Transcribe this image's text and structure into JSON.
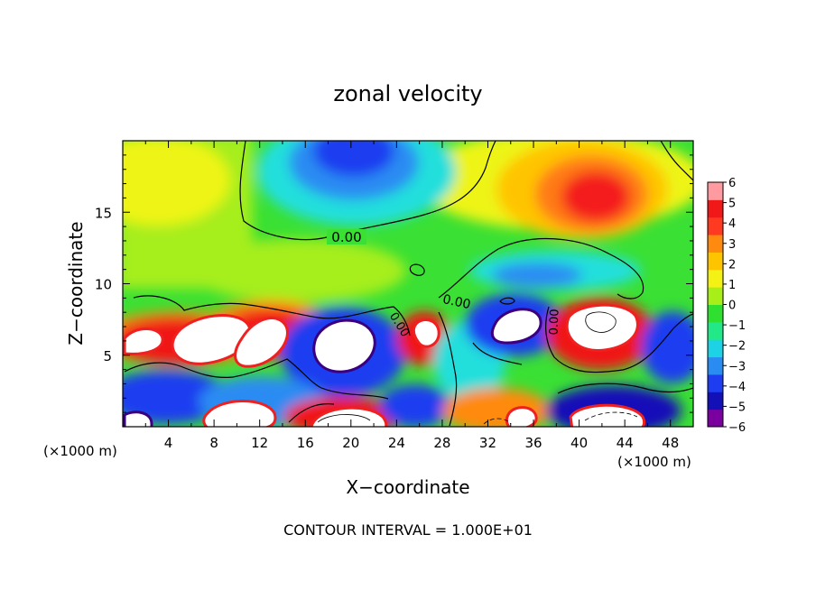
{
  "chart_data": {
    "type": "heatmap",
    "title": "zonal velocity",
    "xlabel": "X−coordinate",
    "ylabel": "Z−coordinate",
    "x_unit_left": "(×1000 m)",
    "x_unit_right": "(×1000 m)",
    "footer": "CONTOUR INTERVAL = 1.000E+01",
    "xlim": [
      0,
      50
    ],
    "ylim": [
      0,
      20
    ],
    "x_ticks": [
      4,
      8,
      12,
      16,
      20,
      24,
      28,
      32,
      36,
      40,
      44,
      48
    ],
    "y_ticks": [
      5,
      10,
      15
    ],
    "contour_labels": [
      "0.00",
      "0.00",
      "0.00",
      "0.00"
    ],
    "colorbar": {
      "levels": [
        -6,
        -5,
        -4,
        -3,
        -2,
        -1,
        0,
        1,
        2,
        3,
        4,
        5,
        6
      ],
      "labels": [
        "6",
        "5",
        "4",
        "3",
        "2",
        "1",
        "0",
        "−1",
        "−2",
        "−3",
        "−4",
        "−5",
        "−6"
      ],
      "colors": [
        "#7a00a0",
        "#1410b8",
        "#1e3cf0",
        "#2a8cf2",
        "#1ed2e6",
        "#22e888",
        "#30e030",
        "#a8ee18",
        "#f4f214",
        "#ffc400",
        "#ff8a10",
        "#ff3a20",
        "#f01818",
        "#ff9aa0"
      ]
    }
  }
}
